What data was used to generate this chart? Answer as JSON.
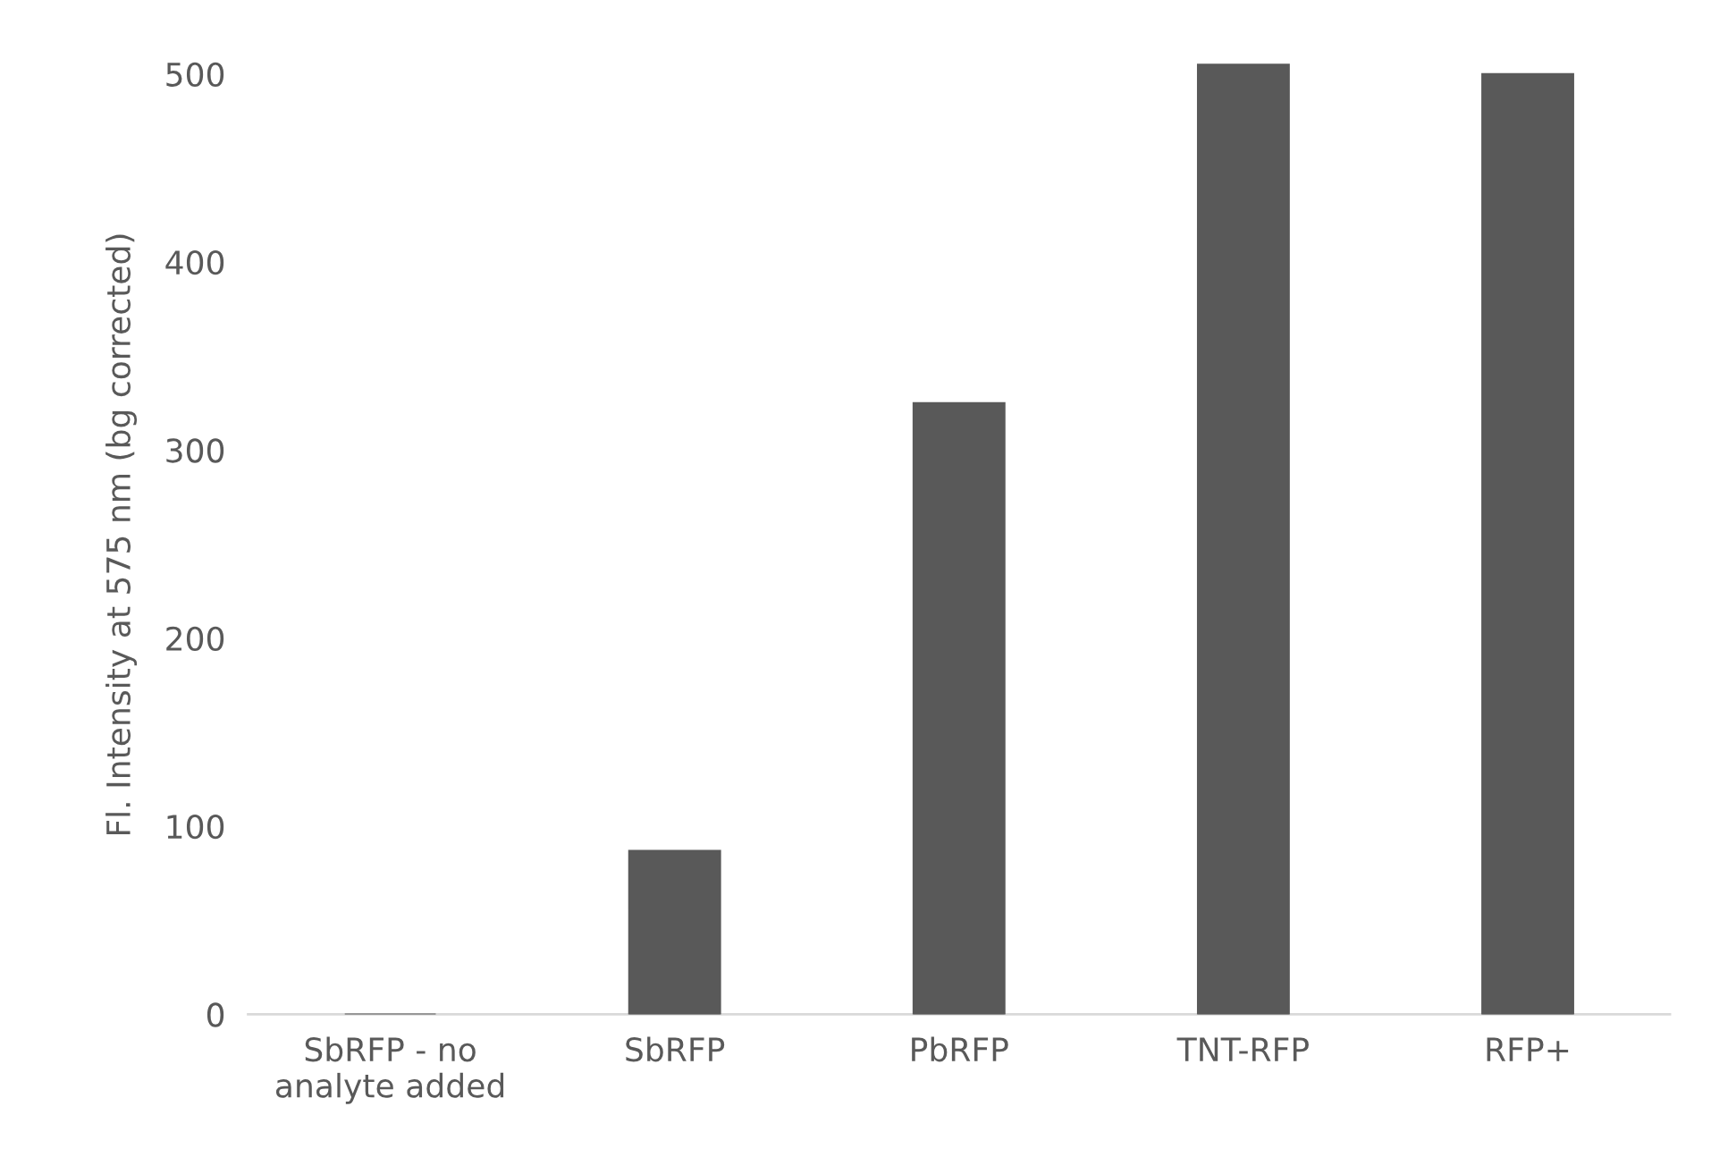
{
  "chart_data": {
    "type": "bar",
    "ylabel": "Fl. Intensity at 575 nm (bg corrected)",
    "categories": [
      "SbRFP - no\nanalyte added",
      "SbRFP",
      "PbRFP",
      "TNT-RFP",
      "RFP+"
    ],
    "values": [
      0,
      87,
      325,
      505,
      500
    ],
    "color": "#595959",
    "ylim": [
      0,
      510
    ],
    "yticks": [
      0,
      100,
      200,
      300,
      400,
      500
    ],
    "grid": false,
    "legend": false
  }
}
